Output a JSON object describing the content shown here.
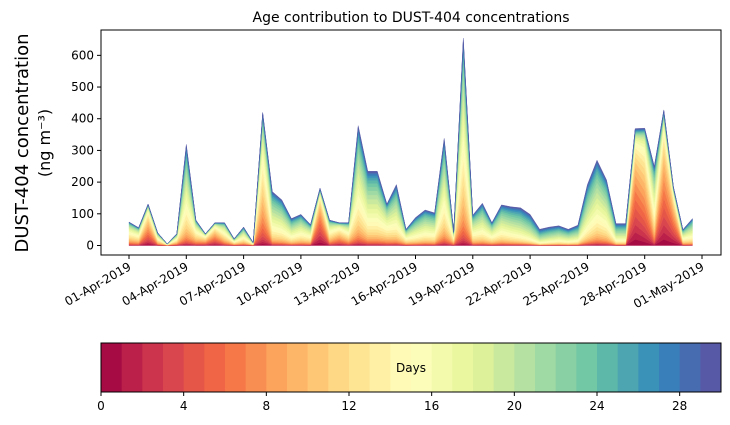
{
  "chart_data": {
    "type": "area",
    "stacked": true,
    "title": "Age contribution to DUST-404 concentrations",
    "ylabel_line1": "DUST-404 concentration",
    "ylabel_line2": "(ng m⁻³)",
    "xlabel": "",
    "ylim": [
      -30,
      680
    ],
    "yticks": [
      0,
      100,
      200,
      300,
      400,
      500,
      600
    ],
    "xticks": [
      "01-Apr-2019",
      "04-Apr-2019",
      "07-Apr-2019",
      "10-Apr-2019",
      "13-Apr-2019",
      "16-Apr-2019",
      "19-Apr-2019",
      "22-Apr-2019",
      "25-Apr-2019",
      "28-Apr-2019",
      "01-May-2019"
    ],
    "x_step_hours": 12,
    "x_start": "01-Apr-2019 00:00",
    "total": [
      74,
      56,
      131,
      40,
      5,
      37,
      319,
      80,
      37,
      72,
      72,
      21,
      58,
      9,
      420,
      170,
      144,
      85,
      98,
      66,
      181,
      80,
      72,
      72,
      378,
      234,
      234,
      131,
      192,
      51,
      88,
      112,
      103,
      338,
      43,
      654,
      96,
      133,
      72,
      128,
      122,
      119,
      98,
      51,
      58,
      62,
      51,
      64,
      192,
      269,
      207,
      69,
      69,
      369,
      370,
      250,
      428,
      186,
      50,
      85
    ],
    "dominant_age_days": [
      14,
      14,
      8,
      14,
      14,
      14,
      17,
      14,
      10,
      8,
      14,
      14,
      16,
      14,
      12,
      18,
      18,
      18,
      17,
      16,
      5,
      14,
      10,
      14,
      17,
      18,
      18,
      16,
      18,
      16,
      18,
      18,
      18,
      17,
      14,
      15,
      17,
      18,
      17,
      18,
      19,
      20,
      21,
      22,
      21,
      20,
      20,
      20,
      19,
      18,
      18,
      20,
      20,
      5,
      8,
      16,
      6,
      6,
      16,
      18
    ],
    "colorbar": {
      "label": "Days",
      "range": [
        0,
        30
      ],
      "bins": 30,
      "ticks": [
        0,
        4,
        8,
        12,
        16,
        20,
        24,
        28
      ],
      "colormap": "Spectral"
    }
  }
}
